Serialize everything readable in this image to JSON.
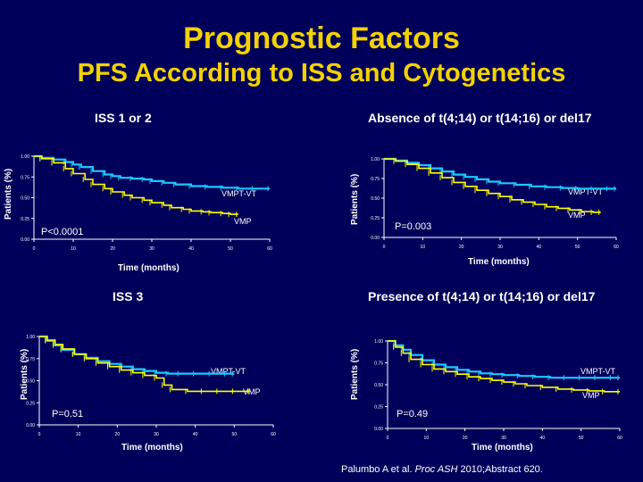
{
  "header": {
    "title": "Prognostic Factors",
    "subtitle": "PFS According to ISS and Cytogenetics"
  },
  "colors": {
    "background": "#00005a",
    "title": "#f2d200",
    "vmpt": "#1ec8ff",
    "vmp": "#ffff00",
    "axis": "#ffffff"
  },
  "citation": {
    "authors": "Palumbo A et al.",
    "journal": "Proc ASH",
    "rest": "2010;Abstract 620."
  },
  "chart_data": [
    {
      "type": "line",
      "title": "ISS 1 or 2",
      "xlabel": "Time (months)",
      "ylabel": "Patients (%)",
      "xlim": [
        0,
        60
      ],
      "ylim": [
        0,
        1
      ],
      "x_ticks": [
        "0",
        "10",
        "20",
        "30",
        "40",
        "50",
        "60"
      ],
      "y_ticks": [
        "0.00",
        "0.25",
        "0.50",
        "0.75",
        "1.00"
      ],
      "annotation": "P<0.0001",
      "series": [
        {
          "name": "VMPT-VT",
          "x": [
            0,
            2,
            5,
            8,
            10,
            12,
            15,
            18,
            20,
            22,
            25,
            28,
            30,
            33,
            36,
            40,
            44,
            48,
            52,
            56,
            60
          ],
          "y": [
            1.0,
            0.98,
            0.96,
            0.93,
            0.9,
            0.87,
            0.82,
            0.78,
            0.76,
            0.74,
            0.73,
            0.72,
            0.7,
            0.68,
            0.66,
            0.64,
            0.63,
            0.62,
            0.61,
            0.61,
            0.61
          ]
        },
        {
          "name": "VMP",
          "x": [
            0,
            2,
            5,
            8,
            10,
            13,
            15,
            18,
            20,
            23,
            25,
            28,
            30,
            33,
            35,
            38,
            40,
            43,
            45,
            48,
            50,
            52
          ],
          "y": [
            1.0,
            0.97,
            0.92,
            0.85,
            0.79,
            0.72,
            0.66,
            0.61,
            0.57,
            0.53,
            0.5,
            0.47,
            0.44,
            0.41,
            0.38,
            0.36,
            0.34,
            0.33,
            0.32,
            0.31,
            0.3,
            0.3
          ]
        }
      ]
    },
    {
      "type": "line",
      "title": "Absence of t(4;14) or t(14;16) or del17",
      "xlabel": "Time (months)",
      "ylabel": "Patients (%)",
      "xlim": [
        0,
        60
      ],
      "ylim": [
        0,
        1
      ],
      "x_ticks": [
        "0",
        "10",
        "20",
        "30",
        "40",
        "50",
        "60"
      ],
      "y_ticks": [
        "0.00",
        "0.25",
        "0.50",
        "0.75",
        "1.00"
      ],
      "annotation": "P=0.003",
      "series": [
        {
          "name": "VMPT-VT",
          "x": [
            0,
            3,
            6,
            9,
            12,
            15,
            18,
            21,
            24,
            27,
            30,
            34,
            38,
            42,
            46,
            50,
            54,
            58,
            60
          ],
          "y": [
            1.0,
            0.98,
            0.95,
            0.92,
            0.88,
            0.84,
            0.8,
            0.77,
            0.74,
            0.71,
            0.69,
            0.67,
            0.65,
            0.64,
            0.63,
            0.62,
            0.62,
            0.62,
            0.62
          ]
        },
        {
          "name": "VMP",
          "x": [
            0,
            3,
            6,
            9,
            12,
            15,
            18,
            21,
            24,
            27,
            30,
            33,
            36,
            39,
            42,
            45,
            48,
            51,
            54,
            56
          ],
          "y": [
            1.0,
            0.97,
            0.93,
            0.88,
            0.82,
            0.76,
            0.7,
            0.65,
            0.6,
            0.56,
            0.52,
            0.48,
            0.45,
            0.42,
            0.39,
            0.37,
            0.35,
            0.33,
            0.32,
            0.32
          ]
        }
      ]
    },
    {
      "type": "line",
      "title": "ISS 3",
      "xlabel": "Time (months)",
      "ylabel": "Patients (%)",
      "xlim": [
        0,
        60
      ],
      "ylim": [
        0,
        1
      ],
      "x_ticks": [
        "0",
        "10",
        "20",
        "30",
        "40",
        "50",
        "60"
      ],
      "y_ticks": [
        "0.00",
        "0.25",
        "0.50",
        "0.75",
        "1.00"
      ],
      "annotation": "P=0.51",
      "series": [
        {
          "name": "VMPT-VT",
          "x": [
            0,
            2,
            4,
            6,
            9,
            12,
            15,
            18,
            21,
            24,
            27,
            30,
            33,
            36,
            40,
            44,
            48,
            50
          ],
          "y": [
            1.0,
            0.95,
            0.9,
            0.85,
            0.8,
            0.76,
            0.72,
            0.69,
            0.66,
            0.63,
            0.61,
            0.59,
            0.58,
            0.58,
            0.58,
            0.58,
            0.58,
            0.58
          ]
        },
        {
          "name": "VMP",
          "x": [
            0,
            2,
            4,
            6,
            9,
            12,
            15,
            18,
            21,
            24,
            27,
            30,
            32,
            34,
            38,
            42,
            46,
            50,
            54
          ],
          "y": [
            1.0,
            0.96,
            0.91,
            0.86,
            0.8,
            0.75,
            0.7,
            0.66,
            0.62,
            0.59,
            0.56,
            0.53,
            0.45,
            0.4,
            0.38,
            0.38,
            0.38,
            0.38,
            0.38
          ]
        }
      ]
    },
    {
      "type": "line",
      "title": "Presence of t(4;14) or t(14;16) or del17",
      "xlabel": "Time (months)",
      "ylabel": "Patients (%)",
      "xlim": [
        0,
        60
      ],
      "ylim": [
        0,
        1
      ],
      "x_ticks": [
        "0",
        "10",
        "20",
        "30",
        "40",
        "50",
        "60"
      ],
      "y_ticks": [
        "0.00",
        "0.25",
        "0.50",
        "0.75",
        "1.00"
      ],
      "annotation": "P=0.49",
      "series": [
        {
          "name": "VMPT-VT",
          "x": [
            0,
            2,
            4,
            6,
            9,
            12,
            15,
            18,
            21,
            24,
            27,
            30,
            34,
            38,
            42,
            46,
            50,
            54,
            58,
            60
          ],
          "y": [
            1.0,
            0.95,
            0.9,
            0.84,
            0.78,
            0.73,
            0.7,
            0.67,
            0.65,
            0.63,
            0.62,
            0.61,
            0.6,
            0.59,
            0.58,
            0.58,
            0.58,
            0.58,
            0.58,
            0.58
          ]
        },
        {
          "name": "VMP",
          "x": [
            0,
            2,
            4,
            6,
            9,
            12,
            15,
            18,
            21,
            24,
            27,
            30,
            33,
            36,
            40,
            44,
            48,
            52,
            56,
            60
          ],
          "y": [
            1.0,
            0.93,
            0.86,
            0.79,
            0.73,
            0.68,
            0.65,
            0.62,
            0.59,
            0.57,
            0.55,
            0.53,
            0.51,
            0.49,
            0.47,
            0.45,
            0.44,
            0.43,
            0.42,
            0.42
          ]
        }
      ]
    }
  ]
}
